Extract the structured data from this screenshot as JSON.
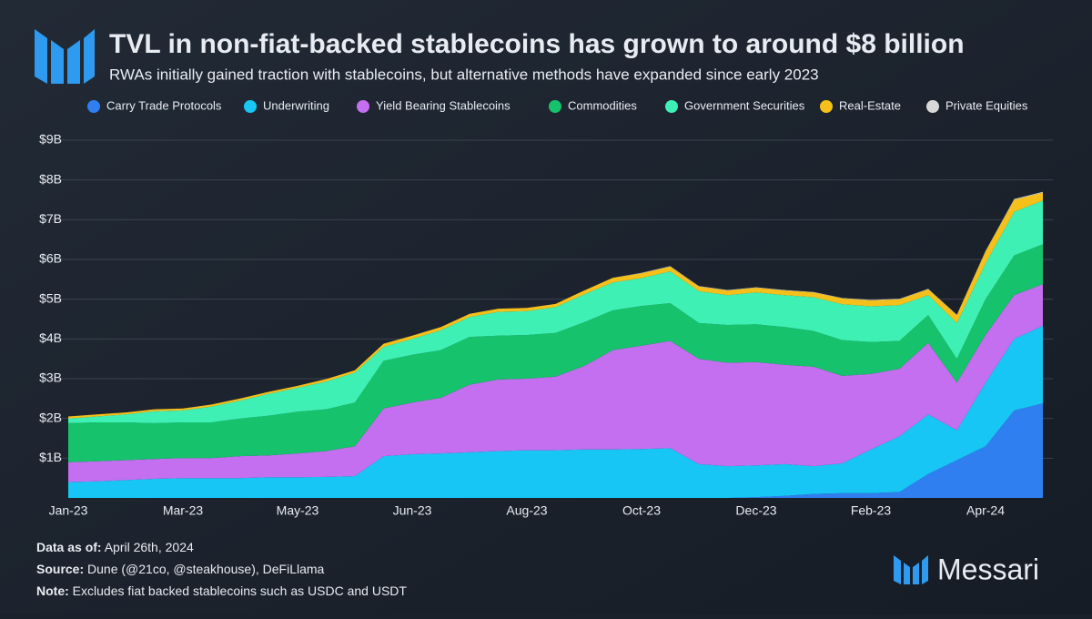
{
  "chart_data": {
    "type": "stacked-area",
    "title": "TVL in non-fiat-backed stablecoins has grown to around $8 billion",
    "subtitle": "RWAs initially gained traction with stablecoins, but alternative methods have expanded since early 2023",
    "categories": [
      "Jan-23",
      null,
      null,
      null,
      "Mar-23",
      null,
      null,
      null,
      "May-23",
      null,
      null,
      null,
      "Jun-23",
      null,
      null,
      null,
      "Aug-23",
      null,
      null,
      null,
      "Oct-23",
      null,
      null,
      null,
      "Dec-23",
      null,
      null,
      null,
      "Feb-23",
      null,
      null,
      null,
      "Apr-24",
      null,
      null
    ],
    "ylim": [
      0,
      9
    ],
    "yticks": [
      {
        "value": 1,
        "label": "$1B"
      },
      {
        "value": 2,
        "label": "$2B"
      },
      {
        "value": 3,
        "label": "$3B"
      },
      {
        "value": 4,
        "label": "$4B"
      },
      {
        "value": 5,
        "label": "$5B"
      },
      {
        "value": 6,
        "label": "$6B"
      },
      {
        "value": 7,
        "label": "$7B"
      },
      {
        "value": 8,
        "label": "$8B"
      },
      {
        "value": 9,
        "label": "$9B"
      }
    ],
    "grid": true,
    "series": [
      {
        "name": "Carry Trade Protocols",
        "color": "#2f7ff0",
        "values": [
          0,
          0,
          0,
          0,
          0,
          0,
          0,
          0,
          0,
          0,
          0,
          0,
          0,
          0,
          0,
          0,
          0,
          0,
          0,
          0,
          0,
          0,
          0,
          0,
          0.02,
          0.05,
          0.1,
          0.12,
          0.12,
          0.15,
          0.6,
          0.95,
          1.3,
          2.2,
          2.38
        ]
      },
      {
        "name": "Underwriting",
        "color": "#18c6f5",
        "values": [
          0.4,
          0.42,
          0.45,
          0.48,
          0.5,
          0.5,
          0.5,
          0.52,
          0.52,
          0.53,
          0.55,
          1.05,
          1.1,
          1.12,
          1.15,
          1.18,
          1.2,
          1.2,
          1.22,
          1.22,
          1.23,
          1.25,
          0.85,
          0.8,
          0.8,
          0.8,
          0.7,
          0.75,
          1.1,
          1.4,
          1.5,
          0.75,
          1.6,
          1.8,
          1.95
        ]
      },
      {
        "name": "Yield Bearing Stablecoins",
        "color": "#c46ef0",
        "values": [
          0.5,
          0.5,
          0.5,
          0.5,
          0.5,
          0.5,
          0.55,
          0.55,
          0.6,
          0.65,
          0.75,
          1.2,
          1.3,
          1.4,
          1.7,
          1.8,
          1.8,
          1.85,
          2.1,
          2.5,
          2.6,
          2.7,
          2.65,
          2.6,
          2.6,
          2.5,
          2.5,
          2.2,
          1.9,
          1.7,
          1.8,
          1.2,
          1.2,
          1.1,
          1.05
        ]
      },
      {
        "name": "Commodities",
        "color": "#16c26b",
        "values": [
          0.98,
          0.98,
          0.95,
          0.9,
          0.9,
          0.9,
          0.95,
          1.0,
          1.05,
          1.05,
          1.1,
          1.2,
          1.2,
          1.2,
          1.2,
          1.1,
          1.1,
          1.1,
          1.1,
          1.0,
          1.0,
          0.95,
          0.9,
          0.95,
          0.95,
          0.95,
          0.9,
          0.9,
          0.8,
          0.7,
          0.7,
          0.6,
          0.9,
          1.0,
          1.0
        ]
      },
      {
        "name": "Government Securities",
        "color": "#3ff0b5",
        "values": [
          0.12,
          0.15,
          0.2,
          0.3,
          0.3,
          0.4,
          0.45,
          0.55,
          0.6,
          0.7,
          0.75,
          0.35,
          0.4,
          0.5,
          0.5,
          0.6,
          0.6,
          0.65,
          0.7,
          0.7,
          0.7,
          0.8,
          0.8,
          0.75,
          0.8,
          0.8,
          0.85,
          0.9,
          0.9,
          0.9,
          0.5,
          0.9,
          0.9,
          1.1,
          1.1
        ]
      },
      {
        "name": "Real-Estate",
        "color": "#f5c01a",
        "values": [
          0.05,
          0.05,
          0.05,
          0.05,
          0.05,
          0.05,
          0.05,
          0.05,
          0.05,
          0.06,
          0.06,
          0.08,
          0.08,
          0.08,
          0.08,
          0.08,
          0.08,
          0.08,
          0.1,
          0.12,
          0.12,
          0.12,
          0.12,
          0.12,
          0.12,
          0.12,
          0.12,
          0.15,
          0.15,
          0.15,
          0.15,
          0.2,
          0.3,
          0.3,
          0.2
        ]
      },
      {
        "name": "Private Equities",
        "color": "#d8d8d8",
        "values": [
          0,
          0,
          0,
          0,
          0,
          0,
          0,
          0,
          0,
          0,
          0,
          0,
          0,
          0,
          0,
          0,
          0,
          0,
          0,
          0,
          0.01,
          0.01,
          0.01,
          0.01,
          0.01,
          0.01,
          0.01,
          0.01,
          0.01,
          0.01,
          0.01,
          0.01,
          0.01,
          0.02,
          0.02
        ]
      }
    ]
  },
  "footer": {
    "data_as_of": {
      "label": "Data as of:",
      "text": "April 26th, 2024"
    },
    "source": {
      "label": "Source:",
      "text": "Dune (@21co, @steakhouse), DeFiLlama"
    },
    "note": {
      "label": "Note:",
      "text": "Excludes fiat backed stablecoins such as USDC and USDT"
    },
    "brand": "Messari"
  }
}
